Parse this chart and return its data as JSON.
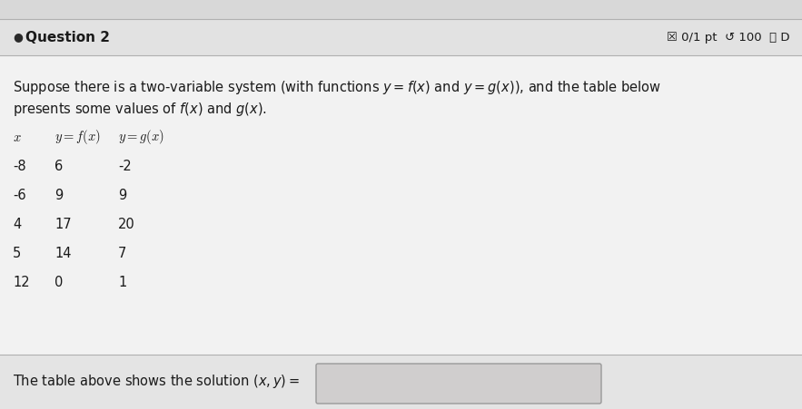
{
  "bg_color": "#e8e8e8",
  "main_bg": "#f0f0f0",
  "header_bg": "#e0e0e0",
  "footer_bg": "#e8e8e8",
  "header_text": "Question 2",
  "header_right": "☒ 0/1 pt  ↺ 100  ⓘ D",
  "para_line1": "Suppose there is a two-variable system (with functions $y = f(x)$ and $y = g(x)$), and the table below",
  "para_line2": "presents some values of $f(x)$ and $g(x)$.",
  "col_header_x": "$x$",
  "col_header_fx": "$y = f(x)$",
  "col_header_gx": "$y = g(x)$",
  "table_data": [
    [
      "-8",
      "6",
      "-2"
    ],
    [
      "-6",
      "9",
      "9"
    ],
    [
      "4",
      "17",
      "20"
    ],
    [
      "5",
      "14",
      "7"
    ],
    [
      "12",
      "0",
      "1"
    ]
  ],
  "footer_text": "The table above shows the solution $(x, y) =$",
  "answer_box_color": "#d0cece",
  "divider_color": "#b0b0b0",
  "text_color": "#1a1a1a"
}
